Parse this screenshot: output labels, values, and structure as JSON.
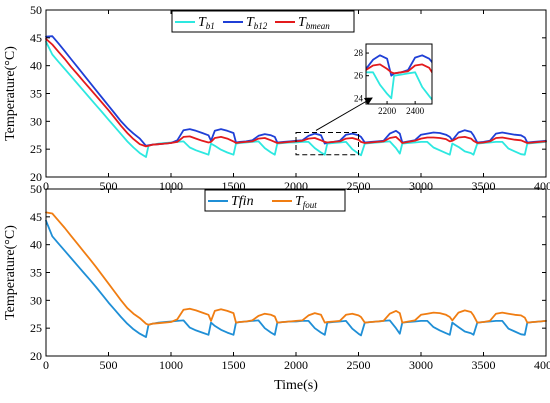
{
  "chart_data": [
    {
      "type": "line",
      "xlabel": "",
      "ylabel": "Temperature(°C)",
      "xlim": [
        0,
        4000
      ],
      "ylim": [
        20,
        50
      ],
      "xticks": [
        0,
        500,
        1000,
        1500,
        2000,
        2500,
        3000,
        3500,
        4000
      ],
      "yticks": [
        20,
        25,
        30,
        35,
        40,
        45,
        50
      ],
      "legend_position": "top-center",
      "legend": [
        {
          "main": "T",
          "sub": "b1",
          "color": "#2de8e0"
        },
        {
          "main": "T",
          "sub": "b12",
          "color": "#1f3fd6"
        },
        {
          "main": "T",
          "sub": "bmean",
          "color": "#e31a1c"
        }
      ],
      "series": [
        {
          "name": "Tb1",
          "color": "#2de8e0",
          "x": [
            0,
            50,
            100,
            150,
            200,
            250,
            300,
            350,
            400,
            450,
            500,
            550,
            600,
            650,
            700,
            750,
            800,
            820,
            850,
            900,
            950,
            1000,
            1050,
            1100,
            1150,
            1200,
            1250,
            1300,
            1320,
            1350,
            1400,
            1450,
            1500,
            1520,
            1550,
            1600,
            1650,
            1700,
            1750,
            1800,
            1830,
            1850,
            1900,
            1950,
            2000,
            2050,
            2100,
            2150,
            2200,
            2230,
            2250,
            2300,
            2350,
            2400,
            2450,
            2500,
            2520,
            2550,
            2600,
            2650,
            2700,
            2750,
            2800,
            2830,
            2850,
            2900,
            2950,
            3000,
            3050,
            3100,
            3150,
            3200,
            3230,
            3250,
            3300,
            3350,
            3400,
            3420,
            3450,
            3500,
            3550,
            3600,
            3650,
            3700,
            3750,
            3800,
            3830,
            3850,
            3900,
            3950,
            4000
          ],
          "values": [
            44.3,
            42.0,
            40.7,
            39.4,
            38.1,
            36.8,
            35.5,
            34.2,
            32.9,
            31.6,
            30.3,
            29.0,
            27.7,
            26.4,
            25.3,
            24.3,
            23.6,
            25.6,
            25.8,
            26.0,
            26.1,
            26.2,
            26.3,
            26.4,
            25.3,
            24.8,
            24.4,
            24.0,
            26.0,
            25.6,
            24.9,
            24.4,
            24.0,
            26.0,
            26.1,
            26.2,
            26.3,
            26.4,
            25.2,
            24.4,
            24.0,
            26.0,
            26.1,
            26.2,
            26.2,
            26.3,
            26.3,
            25.2,
            24.4,
            24.0,
            26.0,
            26.1,
            26.2,
            26.3,
            25.0,
            24.2,
            23.9,
            26.0,
            26.1,
            26.2,
            26.3,
            26.4,
            25.2,
            24.2,
            26.0,
            26.1,
            26.2,
            26.3,
            26.3,
            25.3,
            24.8,
            24.3,
            24.0,
            26.0,
            25.4,
            24.6,
            24.3,
            24.0,
            26.0,
            26.1,
            26.2,
            26.3,
            26.3,
            25.1,
            24.6,
            24.1,
            24.0,
            26.0,
            26.1,
            26.2,
            26.3
          ]
        },
        {
          "name": "Tb12",
          "color": "#1f3fd6",
          "x": [
            0,
            50,
            100,
            150,
            200,
            250,
            300,
            350,
            400,
            450,
            500,
            550,
            600,
            650,
            700,
            750,
            800,
            820,
            850,
            900,
            950,
            1000,
            1050,
            1100,
            1150,
            1200,
            1250,
            1300,
            1320,
            1350,
            1400,
            1450,
            1500,
            1520,
            1550,
            1600,
            1650,
            1700,
            1750,
            1800,
            1830,
            1850,
            1900,
            1950,
            2000,
            2050,
            2100,
            2150,
            2200,
            2230,
            2250,
            2300,
            2350,
            2400,
            2450,
            2500,
            2520,
            2550,
            2600,
            2650,
            2700,
            2750,
            2800,
            2830,
            2850,
            2900,
            2950,
            3000,
            3050,
            3100,
            3150,
            3200,
            3230,
            3250,
            3300,
            3350,
            3400,
            3420,
            3450,
            3500,
            3550,
            3600,
            3650,
            3700,
            3750,
            3800,
            3830,
            3850,
            3900,
            3950,
            4000
          ],
          "values": [
            45.2,
            45.3,
            44.0,
            42.6,
            41.2,
            39.8,
            38.4,
            37.0,
            35.6,
            34.2,
            32.8,
            31.4,
            30.0,
            28.8,
            27.8,
            26.9,
            25.6,
            25.7,
            25.8,
            25.9,
            26.0,
            26.1,
            26.6,
            28.4,
            28.6,
            28.3,
            27.9,
            27.5,
            26.5,
            28.3,
            28.6,
            28.3,
            27.9,
            26.2,
            26.3,
            26.4,
            26.6,
            27.4,
            27.7,
            27.5,
            27.2,
            26.2,
            26.3,
            26.4,
            26.5,
            26.6,
            27.4,
            27.8,
            27.5,
            26.0,
            26.2,
            26.3,
            26.5,
            27.6,
            27.8,
            27.5,
            27.2,
            26.2,
            26.3,
            26.4,
            26.5,
            27.8,
            28.3,
            27.8,
            26.2,
            26.4,
            26.6,
            27.6,
            27.8,
            28.0,
            27.9,
            27.6,
            27.2,
            26.6,
            28.0,
            28.4,
            28.1,
            27.5,
            26.2,
            26.3,
            26.5,
            27.8,
            28.0,
            27.8,
            27.6,
            27.5,
            27.1,
            26.2,
            26.3,
            26.4,
            26.5
          ]
        },
        {
          "name": "Tbmean",
          "color": "#e31a1c",
          "x": [
            0,
            50,
            100,
            150,
            200,
            250,
            300,
            350,
            400,
            450,
            500,
            550,
            600,
            650,
            700,
            750,
            800,
            820,
            850,
            900,
            950,
            1000,
            1050,
            1100,
            1150,
            1200,
            1250,
            1300,
            1320,
            1350,
            1400,
            1450,
            1500,
            1520,
            1550,
            1600,
            1650,
            1700,
            1750,
            1800,
            1830,
            1850,
            1900,
            1950,
            2000,
            2050,
            2100,
            2150,
            2200,
            2230,
            2250,
            2300,
            2350,
            2400,
            2450,
            2500,
            2520,
            2550,
            2600,
            2650,
            2700,
            2750,
            2800,
            2830,
            2850,
            2900,
            2950,
            3000,
            3050,
            3100,
            3150,
            3200,
            3230,
            3250,
            3300,
            3350,
            3400,
            3420,
            3450,
            3500,
            3550,
            3600,
            3650,
            3700,
            3750,
            3800,
            3830,
            3850,
            3900,
            3950,
            4000
          ],
          "values": [
            44.8,
            43.8,
            42.5,
            41.2,
            39.8,
            38.5,
            37.2,
            35.9,
            34.6,
            33.3,
            32.0,
            30.6,
            29.2,
            27.9,
            26.8,
            25.9,
            25.5,
            25.6,
            25.8,
            25.9,
            26.0,
            26.1,
            26.3,
            27.2,
            27.3,
            26.9,
            26.5,
            26.2,
            26.3,
            27.0,
            27.2,
            26.9,
            26.4,
            26.1,
            26.2,
            26.3,
            26.4,
            26.9,
            27.0,
            26.6,
            26.3,
            26.1,
            26.2,
            26.3,
            26.4,
            26.5,
            26.9,
            27.0,
            26.6,
            26.3,
            26.2,
            26.3,
            26.4,
            26.9,
            27.0,
            26.7,
            26.3,
            26.1,
            26.2,
            26.3,
            26.4,
            27.0,
            27.2,
            26.6,
            26.1,
            26.3,
            26.5,
            26.9,
            27.1,
            27.1,
            27.0,
            26.8,
            26.4,
            26.5,
            27.1,
            27.2,
            26.9,
            26.5,
            26.1,
            26.2,
            26.4,
            27.0,
            27.1,
            26.9,
            26.7,
            26.6,
            26.3,
            26.1,
            26.2,
            26.3,
            26.4
          ]
        }
      ],
      "zoom_box": {
        "x": [
          2000,
          2500
        ],
        "y": [
          24,
          28
        ]
      },
      "inset": {
        "xlim": [
          2050,
          2520
        ],
        "ylim": [
          23.5,
          28.8
        ],
        "xticks": [
          2200,
          2400
        ],
        "yticks": [
          24,
          26,
          28
        ]
      }
    },
    {
      "type": "line",
      "xlabel": "Time(s)",
      "ylabel": "Temperature(°C)",
      "xlim": [
        0,
        4000
      ],
      "ylim": [
        20,
        50
      ],
      "xticks": [
        0,
        500,
        1000,
        1500,
        2000,
        2500,
        3000,
        3500,
        4000
      ],
      "yticks": [
        20,
        25,
        30,
        35,
        40,
        45,
        50
      ],
      "legend_position": "top-center",
      "legend": [
        {
          "main": "Tfin",
          "sub": "",
          "color": "#1f8fd6"
        },
        {
          "main": "T",
          "sub": "fout",
          "color": "#f07d12"
        }
      ],
      "series": [
        {
          "name": "Tfin",
          "color": "#1f8fd6",
          "x": [
            0,
            50,
            100,
            150,
            200,
            250,
            300,
            350,
            400,
            450,
            500,
            550,
            600,
            650,
            700,
            750,
            800,
            820,
            850,
            900,
            950,
            1000,
            1050,
            1100,
            1150,
            1200,
            1250,
            1300,
            1320,
            1350,
            1400,
            1450,
            1500,
            1520,
            1550,
            1600,
            1650,
            1700,
            1750,
            1800,
            1830,
            1850,
            1900,
            1950,
            2000,
            2050,
            2100,
            2150,
            2200,
            2230,
            2250,
            2300,
            2350,
            2400,
            2450,
            2500,
            2520,
            2550,
            2600,
            2650,
            2700,
            2750,
            2800,
            2830,
            2850,
            2900,
            2950,
            3000,
            3050,
            3100,
            3150,
            3200,
            3230,
            3250,
            3300,
            3350,
            3400,
            3420,
            3450,
            3500,
            3550,
            3600,
            3650,
            3700,
            3750,
            3800,
            3830,
            3850,
            3900,
            3950,
            4000
          ],
          "values": [
            44.3,
            41.5,
            40.2,
            38.9,
            37.6,
            36.3,
            35.0,
            33.7,
            32.4,
            31.0,
            29.6,
            28.3,
            27.0,
            25.8,
            24.8,
            24.0,
            23.4,
            25.6,
            25.8,
            26.0,
            26.1,
            26.2,
            26.3,
            26.4,
            25.1,
            24.6,
            24.2,
            23.8,
            26.0,
            25.4,
            24.7,
            24.2,
            23.8,
            26.0,
            26.1,
            26.2,
            26.3,
            26.4,
            25.0,
            24.2,
            23.8,
            26.0,
            26.1,
            26.2,
            26.2,
            26.3,
            26.3,
            25.0,
            24.2,
            23.8,
            26.0,
            26.1,
            26.2,
            26.3,
            24.9,
            24.0,
            23.7,
            26.0,
            26.1,
            26.2,
            26.3,
            26.4,
            25.0,
            24.0,
            26.0,
            26.1,
            26.2,
            26.3,
            26.3,
            25.2,
            24.6,
            24.1,
            23.8,
            26.0,
            25.2,
            24.4,
            24.1,
            23.8,
            26.0,
            26.1,
            26.2,
            26.3,
            26.3,
            24.9,
            24.4,
            23.9,
            23.8,
            26.0,
            26.1,
            26.2,
            26.3
          ]
        },
        {
          "name": "Tfout",
          "color": "#f07d12",
          "x": [
            0,
            50,
            100,
            150,
            200,
            250,
            300,
            350,
            400,
            450,
            500,
            550,
            600,
            650,
            700,
            750,
            800,
            820,
            850,
            900,
            950,
            1000,
            1050,
            1100,
            1150,
            1200,
            1250,
            1300,
            1320,
            1350,
            1400,
            1450,
            1500,
            1520,
            1550,
            1600,
            1650,
            1700,
            1750,
            1800,
            1830,
            1850,
            1900,
            1950,
            2000,
            2050,
            2100,
            2150,
            2200,
            2230,
            2250,
            2300,
            2350,
            2400,
            2450,
            2500,
            2520,
            2550,
            2600,
            2650,
            2700,
            2750,
            2800,
            2830,
            2850,
            2900,
            2950,
            3000,
            3050,
            3100,
            3150,
            3200,
            3230,
            3250,
            3300,
            3350,
            3400,
            3420,
            3450,
            3500,
            3550,
            3600,
            3650,
            3700,
            3750,
            3800,
            3830,
            3850,
            3900,
            3950,
            4000
          ],
          "values": [
            45.8,
            45.6,
            44.3,
            43.0,
            41.6,
            40.2,
            38.8,
            37.4,
            36.0,
            34.5,
            33.0,
            31.5,
            30.0,
            28.6,
            27.6,
            26.8,
            25.8,
            25.6,
            25.8,
            25.9,
            26.0,
            26.1,
            26.6,
            28.3,
            28.5,
            28.2,
            27.8,
            27.4,
            26.3,
            28.1,
            28.4,
            28.1,
            27.7,
            26.0,
            26.1,
            26.2,
            26.4,
            27.2,
            27.6,
            27.4,
            27.1,
            26.0,
            26.1,
            26.2,
            26.3,
            26.4,
            27.3,
            27.7,
            27.4,
            26.0,
            26.1,
            26.2,
            26.3,
            27.4,
            27.6,
            27.3,
            27.0,
            26.0,
            26.1,
            26.2,
            26.3,
            27.6,
            28.1,
            27.7,
            26.0,
            26.2,
            26.4,
            27.4,
            27.6,
            27.8,
            27.7,
            27.4,
            27.0,
            26.4,
            27.8,
            28.2,
            27.9,
            27.3,
            26.0,
            26.1,
            26.3,
            27.6,
            27.8,
            27.6,
            27.4,
            27.3,
            26.9,
            26.0,
            26.1,
            26.2,
            26.3
          ]
        }
      ]
    }
  ]
}
